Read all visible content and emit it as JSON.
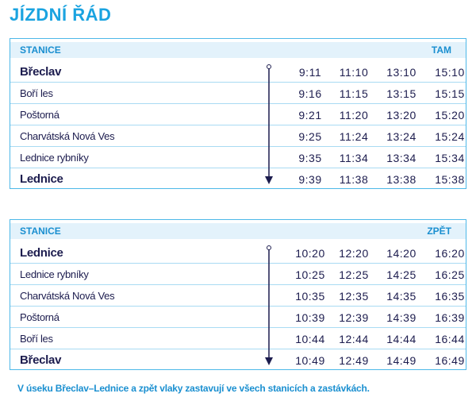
{
  "title": "JÍZDNÍ ŘÁD",
  "tables": [
    {
      "header": {
        "station": "STANICE",
        "direction": "TAM"
      },
      "rows": [
        {
          "station": "Břeclav",
          "times": [
            "9:11",
            "11:10",
            "13:10",
            "15:10"
          ]
        },
        {
          "station": "Boří les",
          "times": [
            "9:16",
            "11:15",
            "13:15",
            "15:15"
          ]
        },
        {
          "station": "Poštorná",
          "times": [
            "9:21",
            "11:20",
            "13:20",
            "15:20"
          ]
        },
        {
          "station": "Charvátská Nová Ves",
          "times": [
            "9:25",
            "11:24",
            "13:24",
            "15:24"
          ]
        },
        {
          "station": "Lednice rybníky",
          "times": [
            "9:35",
            "11:34",
            "13:34",
            "15:34"
          ]
        },
        {
          "station": "Lednice",
          "times": [
            "9:39",
            "11:38",
            "13:38",
            "15:38"
          ]
        }
      ]
    },
    {
      "header": {
        "station": "STANICE",
        "direction": "ZPĚT"
      },
      "rows": [
        {
          "station": "Lednice",
          "times": [
            "10:20",
            "12:20",
            "14:20",
            "16:20"
          ]
        },
        {
          "station": "Lednice rybníky",
          "times": [
            "10:25",
            "12:25",
            "14:25",
            "16:25"
          ]
        },
        {
          "station": "Charvátská Nová Ves",
          "times": [
            "10:35",
            "12:35",
            "14:35",
            "16:35"
          ]
        },
        {
          "station": "Poštorná",
          "times": [
            "10:39",
            "12:39",
            "14:39",
            "16:39"
          ]
        },
        {
          "station": "Boří les",
          "times": [
            "10:44",
            "12:44",
            "14:44",
            "16:44"
          ]
        },
        {
          "station": "Břeclav",
          "times": [
            "10:49",
            "12:49",
            "14:49",
            "16:49"
          ]
        }
      ]
    }
  ],
  "note": "V úseku Břeclav–Lednice a zpět vlaky zastavují ve všech stanicích a zastávkách."
}
